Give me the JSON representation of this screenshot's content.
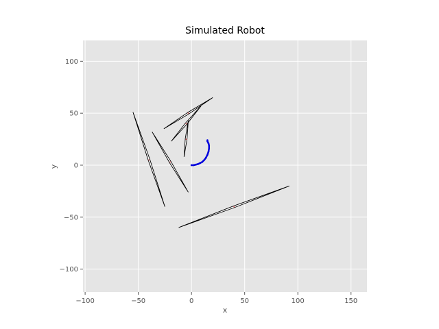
{
  "chart_data": {
    "type": "line",
    "title": "Simulated Robot",
    "xlabel": "x",
    "ylabel": "y",
    "xlim": [
      -102,
      165
    ],
    "ylim": [
      -122,
      120
    ],
    "xticks": [
      -100,
      -50,
      0,
      50,
      100,
      150
    ],
    "yticks": [
      -100,
      -50,
      0,
      50,
      100
    ],
    "xtick_labels": [
      "−100",
      "−50",
      "0",
      "50",
      "100",
      "150"
    ],
    "ytick_labels": [
      "−100",
      "−50",
      "0",
      "50",
      "100"
    ],
    "grid": true,
    "colors": {
      "background": "#e5e5e5",
      "grid": "#ffffff",
      "obstacle_edge": "#000000",
      "obstacle_center": "#e07070",
      "robot_path": "#0000dd"
    },
    "obstacles": [
      {
        "x1": -55,
        "y1": 51,
        "x2": -25,
        "y2": -40,
        "cx": -40,
        "cy": 5
      },
      {
        "x1": -37,
        "y1": 32,
        "x2": -3,
        "y2": -26,
        "cx": -20,
        "cy": 3
      },
      {
        "x1": -26,
        "y1": 35,
        "x2": 20,
        "y2": 65,
        "cx": -3,
        "cy": 50
      },
      {
        "x1": -19,
        "y1": 23,
        "x2": 9,
        "y2": 57,
        "cx": -5,
        "cy": 40
      },
      {
        "x1": -7,
        "y1": 8,
        "x2": -3,
        "y2": 43,
        "cx": -5,
        "cy": 25
      },
      {
        "x1": -12,
        "y1": -60,
        "x2": 92,
        "y2": -20,
        "cx": 40,
        "cy": -40
      }
    ],
    "series": [
      {
        "x": [
          0,
          2,
          4,
          6,
          8,
          10,
          12,
          13.5,
          15,
          16,
          16.5,
          16.5,
          16,
          15,
          15
        ],
        "y": [
          0,
          0,
          0.5,
          1,
          2,
          3,
          5,
          7,
          10,
          13,
          16,
          19,
          21,
          23,
          24
        ]
      }
    ]
  }
}
